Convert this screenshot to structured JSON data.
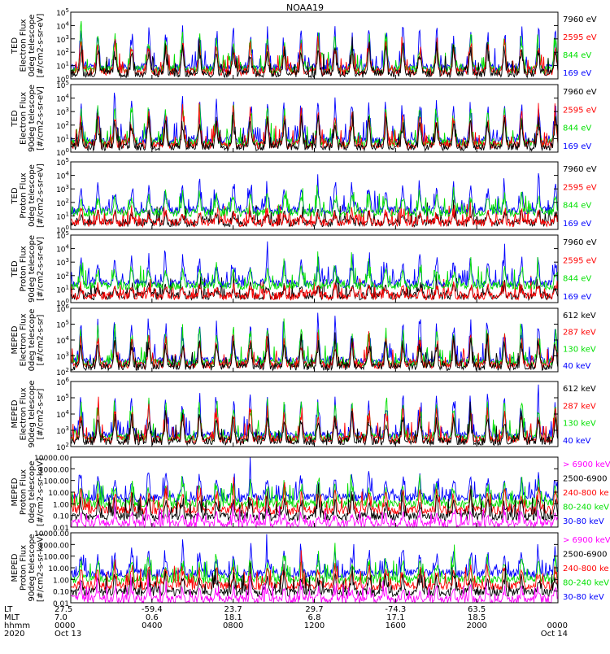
{
  "title": "NOAA19",
  "colors": {
    "black": "#000000",
    "red": "#ff0000",
    "green": "#00e000",
    "blue": "#0000ff",
    "magenta": "#ff00ff"
  },
  "chart_data": [
    {
      "type": "line",
      "scale": "log",
      "ylim": [
        1,
        100000
      ],
      "ylabel": [
        "TED",
        "Electron Flux",
        "0deg telescope",
        "[#/cm2-s-sr-eV]"
      ],
      "ticks": [
        "10^0",
        "10^1",
        "10^2",
        "10^3",
        "10^4",
        "10^5"
      ],
      "legend": [
        {
          "label": "7960 eV",
          "color": "#000000"
        },
        {
          "label": "2595 eV",
          "color": "#ff0000"
        },
        {
          "label": "844 eV",
          "color": "#00e000"
        },
        {
          "label": "169 eV",
          "color": "#0000ff"
        }
      ],
      "series_order": [
        "#0000ff",
        "#00e000",
        "#ff0000",
        "#000000"
      ]
    },
    {
      "type": "line",
      "scale": "log",
      "ylim": [
        1,
        100000
      ],
      "ylabel": [
        "TED",
        "Electron Flux",
        "90deg telescope",
        "[#/cm2-s-sr-eV]"
      ],
      "ticks": [
        "10^0",
        "10^1",
        "10^2",
        "10^3",
        "10^4",
        "10^5"
      ],
      "legend": [
        {
          "label": "7960 eV",
          "color": "#000000"
        },
        {
          "label": "2595 eV",
          "color": "#ff0000"
        },
        {
          "label": "844 eV",
          "color": "#00e000"
        },
        {
          "label": "169 eV",
          "color": "#0000ff"
        }
      ],
      "series_order": [
        "#0000ff",
        "#00e000",
        "#ff0000",
        "#000000"
      ]
    },
    {
      "type": "line",
      "scale": "log",
      "ylim": [
        1,
        100000
      ],
      "ylabel": [
        "TED",
        "Proton Flux",
        "0deg telescope",
        "[#/cm2-s-sr-eV]"
      ],
      "ticks": [
        "10^0",
        "10^1",
        "10^2",
        "10^3",
        "10^4",
        "10^5"
      ],
      "legend": [
        {
          "label": "7960 eV",
          "color": "#000000"
        },
        {
          "label": "2595 eV",
          "color": "#ff0000"
        },
        {
          "label": "844 eV",
          "color": "#00e000"
        },
        {
          "label": "169 eV",
          "color": "#0000ff"
        }
      ],
      "series_order": [
        "#000000",
        "#ff0000",
        "#0000ff",
        "#00e000"
      ]
    },
    {
      "type": "line",
      "scale": "log",
      "ylim": [
        1,
        100000
      ],
      "ylabel": [
        "TED",
        "Proton Flux",
        "90deg telescope",
        "[#/cm2-s-sr-eV]"
      ],
      "ticks": [
        "10^0",
        "10^1",
        "10^2",
        "10^3",
        "10^4",
        "10^5"
      ],
      "legend": [
        {
          "label": "7960 eV",
          "color": "#000000"
        },
        {
          "label": "2595 eV",
          "color": "#ff0000"
        },
        {
          "label": "844 eV",
          "color": "#00e000"
        },
        {
          "label": "169 eV",
          "color": "#0000ff"
        }
      ],
      "series_order": [
        "#000000",
        "#ff0000",
        "#0000ff",
        "#00e000"
      ]
    },
    {
      "type": "line",
      "scale": "log",
      "ylim": [
        100,
        1000000
      ],
      "ylabel": [
        "MEPED",
        "Electron Flux",
        "0deg telescope",
        "[#/cm2-s-sr]"
      ],
      "ticks": [
        "10^2",
        "10^3",
        "10^4",
        "10^5",
        "10^6"
      ],
      "legend": [
        {
          "label": "612 keV",
          "color": "#000000"
        },
        {
          "label": "287 keV",
          "color": "#ff0000"
        },
        {
          "label": "130 keV",
          "color": "#00e000"
        },
        {
          "label": "40 keV",
          "color": "#0000ff"
        }
      ],
      "series_order": [
        "#0000ff",
        "#00e000",
        "#ff0000",
        "#000000"
      ]
    },
    {
      "type": "line",
      "scale": "log",
      "ylim": [
        100,
        1000000
      ],
      "ylabel": [
        "MEPED",
        "Electron Flux",
        "90deg telescope",
        "[#/cm2-s-sr]"
      ],
      "ticks": [
        "10^2",
        "10^3",
        "10^4",
        "10^5",
        "10^6"
      ],
      "legend": [
        {
          "label": "612 keV",
          "color": "#000000"
        },
        {
          "label": "287 keV",
          "color": "#ff0000"
        },
        {
          "label": "130 keV",
          "color": "#00e000"
        },
        {
          "label": "40 keV",
          "color": "#0000ff"
        }
      ],
      "series_order": [
        "#0000ff",
        "#00e000",
        "#ff0000",
        "#000000"
      ]
    },
    {
      "type": "line",
      "scale": "log",
      "ylim": [
        0.01,
        10000
      ],
      "ylabel": [
        "MEPED",
        "Proton Flux",
        "0deg telescope",
        "[#/cm2-s-sr-keV]"
      ],
      "ticks": [
        "0.01",
        "0.10",
        "1.00",
        "10.00",
        "100.00",
        "1000.00",
        "10000.00"
      ],
      "legend": [
        {
          "label": "> 6900 keV",
          "color": "#ff00ff"
        },
        {
          "label": "2500-6900",
          "color": "#000000"
        },
        {
          "label": "240-800 ke",
          "color": "#ff0000"
        },
        {
          "label": "80-240 keV",
          "color": "#00e000"
        },
        {
          "label": "30-80 keV",
          "color": "#0000ff"
        }
      ],
      "series_order": [
        "#0000ff",
        "#00e000",
        "#ff0000",
        "#000000",
        "#ff00ff"
      ]
    },
    {
      "type": "line",
      "scale": "log",
      "ylim": [
        0.01,
        10000
      ],
      "ylabel": [
        "MEPED",
        "Proton Flux",
        "90deg telescope",
        "[#/cm2-s-sr-keV]"
      ],
      "ticks": [
        "0.01",
        "0.10",
        "1.00",
        "10.00",
        "100.00",
        "1000.00",
        "10000.00"
      ],
      "legend": [
        {
          "label": "> 6900 keV",
          "color": "#ff00ff"
        },
        {
          "label": "2500-6900",
          "color": "#000000"
        },
        {
          "label": "240-800 ke",
          "color": "#ff0000"
        },
        {
          "label": "80-240 keV",
          "color": "#00e000"
        },
        {
          "label": "30-80 keV",
          "color": "#0000ff"
        }
      ],
      "series_order": [
        "#0000ff",
        "#00e000",
        "#ff0000",
        "#000000",
        "#ff00ff"
      ]
    }
  ],
  "x_axis": {
    "row_labels": [
      "LT",
      "MLT",
      "hhmm",
      "2020"
    ],
    "columns": [
      {
        "lt": "27.5",
        "mlt": "7.0",
        "hhmm": "0000",
        "date": "Oct 13"
      },
      {
        "lt": "-59.4",
        "mlt": "0.6",
        "hhmm": "0400",
        "date": ""
      },
      {
        "lt": "23.7",
        "mlt": "18.1",
        "hhmm": "0800",
        "date": ""
      },
      {
        "lt": "29.7",
        "mlt": "6.8",
        "hhmm": "1200",
        "date": ""
      },
      {
        "lt": "-74.3",
        "mlt": "17.1",
        "hhmm": "1600",
        "date": ""
      },
      {
        "lt": "63.5",
        "mlt": "18.5",
        "hhmm": "2000",
        "date": ""
      },
      {
        "lt": "",
        "mlt": "",
        "hhmm": "0000",
        "date": "Oct 14"
      }
    ]
  }
}
